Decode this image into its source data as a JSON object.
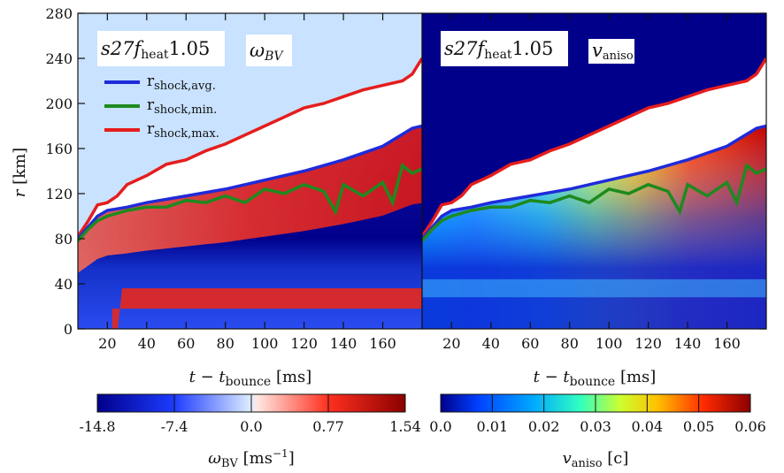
{
  "chart_data": [
    {
      "type": "heatmap",
      "panel_label": "s27f",
      "panel_label_sub": "heat",
      "panel_label_value": "1.05",
      "quantity_label": "ω",
      "quantity_label_sub": "BV",
      "xlabel": "t − t",
      "xlabel_sub": "bounce",
      "xlabel_unit": "[ms]",
      "ylabel": "r",
      "ylabel_unit": "[km]",
      "xlim": [
        5,
        180
      ],
      "ylim": [
        0,
        280
      ],
      "xticks": [
        20,
        40,
        60,
        80,
        100,
        120,
        140,
        160
      ],
      "yticks": [
        0,
        40,
        80,
        120,
        160,
        200,
        240,
        280
      ],
      "legend": [
        {
          "label": "r",
          "sub": "shock,avg.",
          "color": "#1f2bd9"
        },
        {
          "label": "r",
          "sub": "shock,min.",
          "color": "#1e8a1e"
        },
        {
          "label": "r",
          "sub": "shock,max.",
          "color": "#e51d1d"
        }
      ],
      "series": [
        {
          "name": "r_shock,avg.",
          "x": [
            5,
            10,
            15,
            20,
            30,
            40,
            60,
            80,
            100,
            120,
            140,
            160,
            175,
            180
          ],
          "y": [
            80,
            90,
            100,
            105,
            108,
            112,
            118,
            124,
            132,
            140,
            150,
            162,
            178,
            180
          ]
        },
        {
          "name": "r_shock,min.",
          "x": [
            5,
            10,
            15,
            20,
            30,
            40,
            50,
            60,
            70,
            80,
            90,
            100,
            110,
            120,
            130,
            136,
            140,
            150,
            160,
            165,
            170,
            175,
            180
          ],
          "y": [
            78,
            88,
            96,
            100,
            105,
            108,
            108,
            114,
            112,
            118,
            112,
            124,
            120,
            128,
            122,
            104,
            128,
            118,
            130,
            112,
            145,
            138,
            142
          ]
        },
        {
          "name": "r_shock,max.",
          "x": [
            5,
            10,
            15,
            20,
            25,
            30,
            40,
            50,
            60,
            70,
            80,
            90,
            100,
            110,
            120,
            130,
            140,
            150,
            160,
            170,
            175,
            180
          ],
          "y": [
            82,
            95,
            110,
            112,
            118,
            128,
            136,
            146,
            150,
            158,
            164,
            172,
            180,
            188,
            196,
            200,
            206,
            212,
            216,
            220,
            226,
            240
          ]
        }
      ],
      "colorbar": {
        "ticks": [
          "-14.8",
          "-7.4",
          "0.0",
          "0.77",
          "1.54"
        ],
        "label": "ω",
        "label_sub": "BV",
        "label_unit": "[ms",
        "label_unit_sup": "−1",
        "label_unit_end": "]",
        "colors": [
          "#00008b",
          "#1e3cff",
          "#cfe5ff",
          "#ffd6cf",
          "#ff2b1e",
          "#8b0000"
        ]
      }
    },
    {
      "type": "heatmap",
      "panel_label": "s27f",
      "panel_label_sub": "heat",
      "panel_label_value": "1.05",
      "quantity_label": "v",
      "quantity_label_sub": "aniso",
      "xlabel": "t − t",
      "xlabel_sub": "bounce",
      "xlabel_unit": "[ms]",
      "xlim": [
        5,
        180
      ],
      "ylim": [
        0,
        280
      ],
      "xticks": [
        20,
        40,
        60,
        80,
        100,
        120,
        140,
        160
      ],
      "colorbar": {
        "ticks": [
          "0.0",
          "0.01",
          "0.02",
          "0.03",
          "0.04",
          "0.05",
          "0.06"
        ],
        "label": "v",
        "label_sub": "aniso",
        "label_unit": "[c]",
        "colors": [
          "#00008b",
          "#0050ff",
          "#00b4ff",
          "#40ffb0",
          "#c8ff30",
          "#ffb000",
          "#ff2000",
          "#8b0000"
        ]
      }
    }
  ]
}
